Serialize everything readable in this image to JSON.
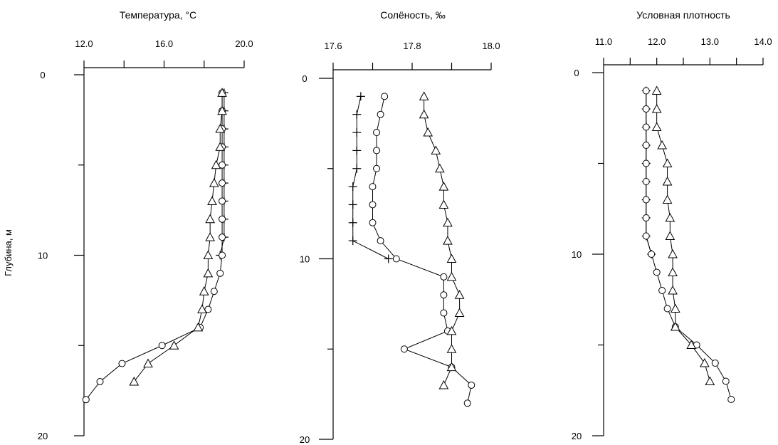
{
  "y_axis_label": "Глубина, м",
  "chart_data": [
    {
      "type": "line",
      "title": "Температура, °C",
      "xlim": [
        12.0,
        20.0
      ],
      "x_ticks": [
        "12.0",
        "16.0",
        "20.0"
      ],
      "ylim": [
        0,
        20
      ],
      "y_ticks": [
        "0",
        "10",
        "20"
      ],
      "y_inverted": true,
      "series": [
        {
          "marker": "cross",
          "points": [
            [
              19.0,
              1
            ],
            [
              19.0,
              2
            ],
            [
              19.0,
              3
            ],
            [
              19.0,
              4
            ],
            [
              19.0,
              5
            ],
            [
              19.0,
              6
            ],
            [
              19.0,
              7
            ],
            [
              19.0,
              8
            ],
            [
              19.0,
              9
            ],
            [
              18.8,
              10
            ]
          ]
        },
        {
          "marker": "circle",
          "points": [
            [
              18.9,
              1
            ],
            [
              18.9,
              2
            ],
            [
              18.9,
              3
            ],
            [
              18.9,
              4
            ],
            [
              18.9,
              5
            ],
            [
              18.9,
              6
            ],
            [
              18.9,
              7
            ],
            [
              18.9,
              8
            ],
            [
              18.9,
              9
            ],
            [
              18.9,
              10
            ],
            [
              18.8,
              11
            ],
            [
              18.5,
              12
            ],
            [
              18.2,
              13
            ],
            [
              17.8,
              14
            ],
            [
              15.9,
              15
            ],
            [
              13.9,
              16
            ],
            [
              12.8,
              17
            ],
            [
              12.1,
              18
            ]
          ]
        },
        {
          "marker": "triangle",
          "points": [
            [
              18.9,
              1
            ],
            [
              18.9,
              2
            ],
            [
              18.8,
              3
            ],
            [
              18.8,
              4
            ],
            [
              18.6,
              5
            ],
            [
              18.5,
              6
            ],
            [
              18.4,
              7
            ],
            [
              18.3,
              8
            ],
            [
              18.3,
              9
            ],
            [
              18.2,
              10
            ],
            [
              18.2,
              11
            ],
            [
              18.0,
              12
            ],
            [
              17.9,
              13
            ],
            [
              17.7,
              14
            ],
            [
              16.5,
              15
            ],
            [
              15.2,
              16
            ],
            [
              14.5,
              17
            ]
          ]
        }
      ]
    },
    {
      "type": "line",
      "title": "Солёность, ‰",
      "xlim": [
        17.6,
        18.0
      ],
      "x_ticks": [
        "17.6",
        "17.8",
        "18.0"
      ],
      "ylim": [
        0,
        20
      ],
      "y_ticks": [
        "0",
        "10",
        "20"
      ],
      "y_inverted": true,
      "series": [
        {
          "marker": "cross",
          "points": [
            [
              17.67,
              1
            ],
            [
              17.66,
              2
            ],
            [
              17.66,
              3
            ],
            [
              17.66,
              4
            ],
            [
              17.66,
              5
            ],
            [
              17.65,
              6
            ],
            [
              17.65,
              7
            ],
            [
              17.65,
              8
            ],
            [
              17.65,
              9
            ],
            [
              17.74,
              10
            ]
          ]
        },
        {
          "marker": "circle",
          "points": [
            [
              17.73,
              1
            ],
            [
              17.72,
              2
            ],
            [
              17.71,
              3
            ],
            [
              17.71,
              4
            ],
            [
              17.71,
              5
            ],
            [
              17.7,
              6
            ],
            [
              17.7,
              7
            ],
            [
              17.7,
              8
            ],
            [
              17.72,
              9
            ],
            [
              17.76,
              10
            ],
            [
              17.88,
              11
            ],
            [
              17.88,
              12
            ],
            [
              17.88,
              13
            ],
            [
              17.89,
              14
            ],
            [
              17.78,
              15
            ],
            [
              17.9,
              16
            ],
            [
              17.95,
              17
            ],
            [
              17.94,
              18
            ]
          ]
        },
        {
          "marker": "triangle",
          "points": [
            [
              17.83,
              1
            ],
            [
              17.83,
              2
            ],
            [
              17.84,
              3
            ],
            [
              17.86,
              4
            ],
            [
              17.87,
              5
            ],
            [
              17.88,
              6
            ],
            [
              17.88,
              7
            ],
            [
              17.89,
              8
            ],
            [
              17.89,
              9
            ],
            [
              17.9,
              10
            ],
            [
              17.9,
              11
            ],
            [
              17.92,
              12
            ],
            [
              17.92,
              13
            ],
            [
              17.9,
              14
            ],
            [
              17.9,
              15
            ],
            [
              17.9,
              16
            ],
            [
              17.88,
              17
            ]
          ]
        }
      ]
    },
    {
      "type": "line",
      "title": "Условная плотность",
      "xlim": [
        11.0,
        14.0
      ],
      "x_ticks": [
        "11.0",
        "12.0",
        "13.0",
        "14.0"
      ],
      "ylim": [
        0,
        20
      ],
      "y_ticks": [
        "0",
        "10",
        "20"
      ],
      "y_inverted": true,
      "series": [
        {
          "marker": "cross",
          "points": [
            [
              11.8,
              1
            ],
            [
              11.8,
              2
            ],
            [
              11.8,
              3
            ],
            [
              11.8,
              4
            ],
            [
              11.8,
              5
            ],
            [
              11.8,
              6
            ],
            [
              11.8,
              7
            ],
            [
              11.8,
              8
            ],
            [
              11.8,
              9
            ],
            [
              11.9,
              10
            ]
          ]
        },
        {
          "marker": "circle",
          "points": [
            [
              11.8,
              1
            ],
            [
              11.8,
              2
            ],
            [
              11.8,
              3
            ],
            [
              11.8,
              4
            ],
            [
              11.8,
              5
            ],
            [
              11.8,
              6
            ],
            [
              11.8,
              7
            ],
            [
              11.8,
              8
            ],
            [
              11.8,
              9
            ],
            [
              11.9,
              10
            ],
            [
              12.0,
              11
            ],
            [
              12.1,
              12
            ],
            [
              12.2,
              13
            ],
            [
              12.35,
              14
            ],
            [
              12.75,
              15
            ],
            [
              13.1,
              16
            ],
            [
              13.3,
              17
            ],
            [
              13.4,
              18
            ]
          ]
        },
        {
          "marker": "triangle",
          "points": [
            [
              12.0,
              1
            ],
            [
              12.0,
              2
            ],
            [
              12.0,
              3
            ],
            [
              12.1,
              4
            ],
            [
              12.2,
              5
            ],
            [
              12.2,
              6
            ],
            [
              12.2,
              7
            ],
            [
              12.25,
              8
            ],
            [
              12.25,
              9
            ],
            [
              12.3,
              10
            ],
            [
              12.3,
              11
            ],
            [
              12.3,
              12
            ],
            [
              12.35,
              13
            ],
            [
              12.35,
              14
            ],
            [
              12.65,
              15
            ],
            [
              12.9,
              16
            ],
            [
              13.0,
              17
            ]
          ]
        }
      ]
    }
  ]
}
